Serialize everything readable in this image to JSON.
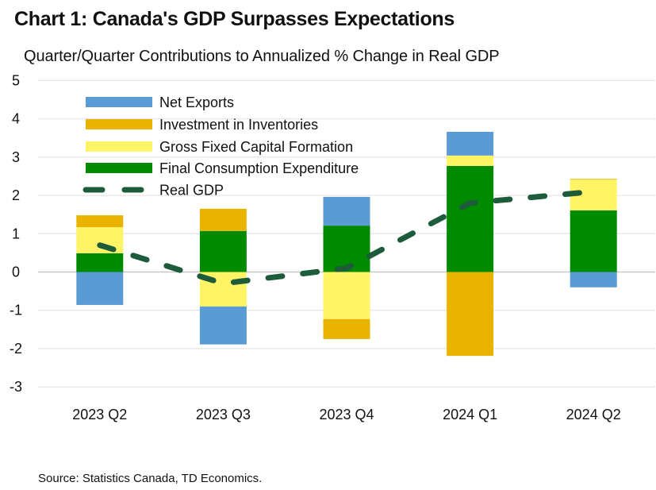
{
  "chart_data": {
    "type": "bar",
    "stacked": true,
    "title": "Chart 1: Canada's GDP Surpasses Expectations",
    "subtitle": "Quarter/Quarter Contributions to Annualized % Change in Real GDP",
    "source": "Source: Statistics Canada, TD Economics.",
    "xlabel": "",
    "ylabel": "",
    "categories": [
      "2023 Q2",
      "2023 Q3",
      "2023 Q4",
      "2024 Q1",
      "2024 Q2"
    ],
    "ylim": [
      -3,
      5
    ],
    "yticks": [
      5,
      4,
      3,
      2,
      1,
      0,
      -1,
      -2,
      -3
    ],
    "grid": true,
    "legend_position": "top-left",
    "series": [
      {
        "name": "Final Consumption Expenditure",
        "kind": "bar",
        "color": "#008A00",
        "values": [
          0.49,
          1.07,
          1.21,
          2.77,
          1.61
        ]
      },
      {
        "name": "Gross Fixed Capital Formation",
        "kind": "bar",
        "color": "#FFF466",
        "values": [
          0.68,
          -0.9,
          -1.23,
          0.27,
          0.8
        ]
      },
      {
        "name": "Investment in Inventories",
        "kind": "bar",
        "color": "#E8B400",
        "values": [
          0.31,
          0.58,
          -0.52,
          -2.19,
          0.02
        ]
      },
      {
        "name": "Net Exports",
        "kind": "bar",
        "color": "#5B9BD5",
        "values": [
          -0.86,
          -0.99,
          0.75,
          0.62,
          -0.4
        ]
      },
      {
        "name": "Real GDP",
        "kind": "line",
        "style": "dashed",
        "color": "#1E5B3A",
        "values": [
          0.7,
          -0.3,
          0.1,
          1.8,
          2.1
        ]
      }
    ],
    "legend_order": [
      "Net Exports",
      "Investment in Inventories",
      "Gross Fixed Capital Formation",
      "Final Consumption Expenditure",
      "Real GDP"
    ]
  }
}
